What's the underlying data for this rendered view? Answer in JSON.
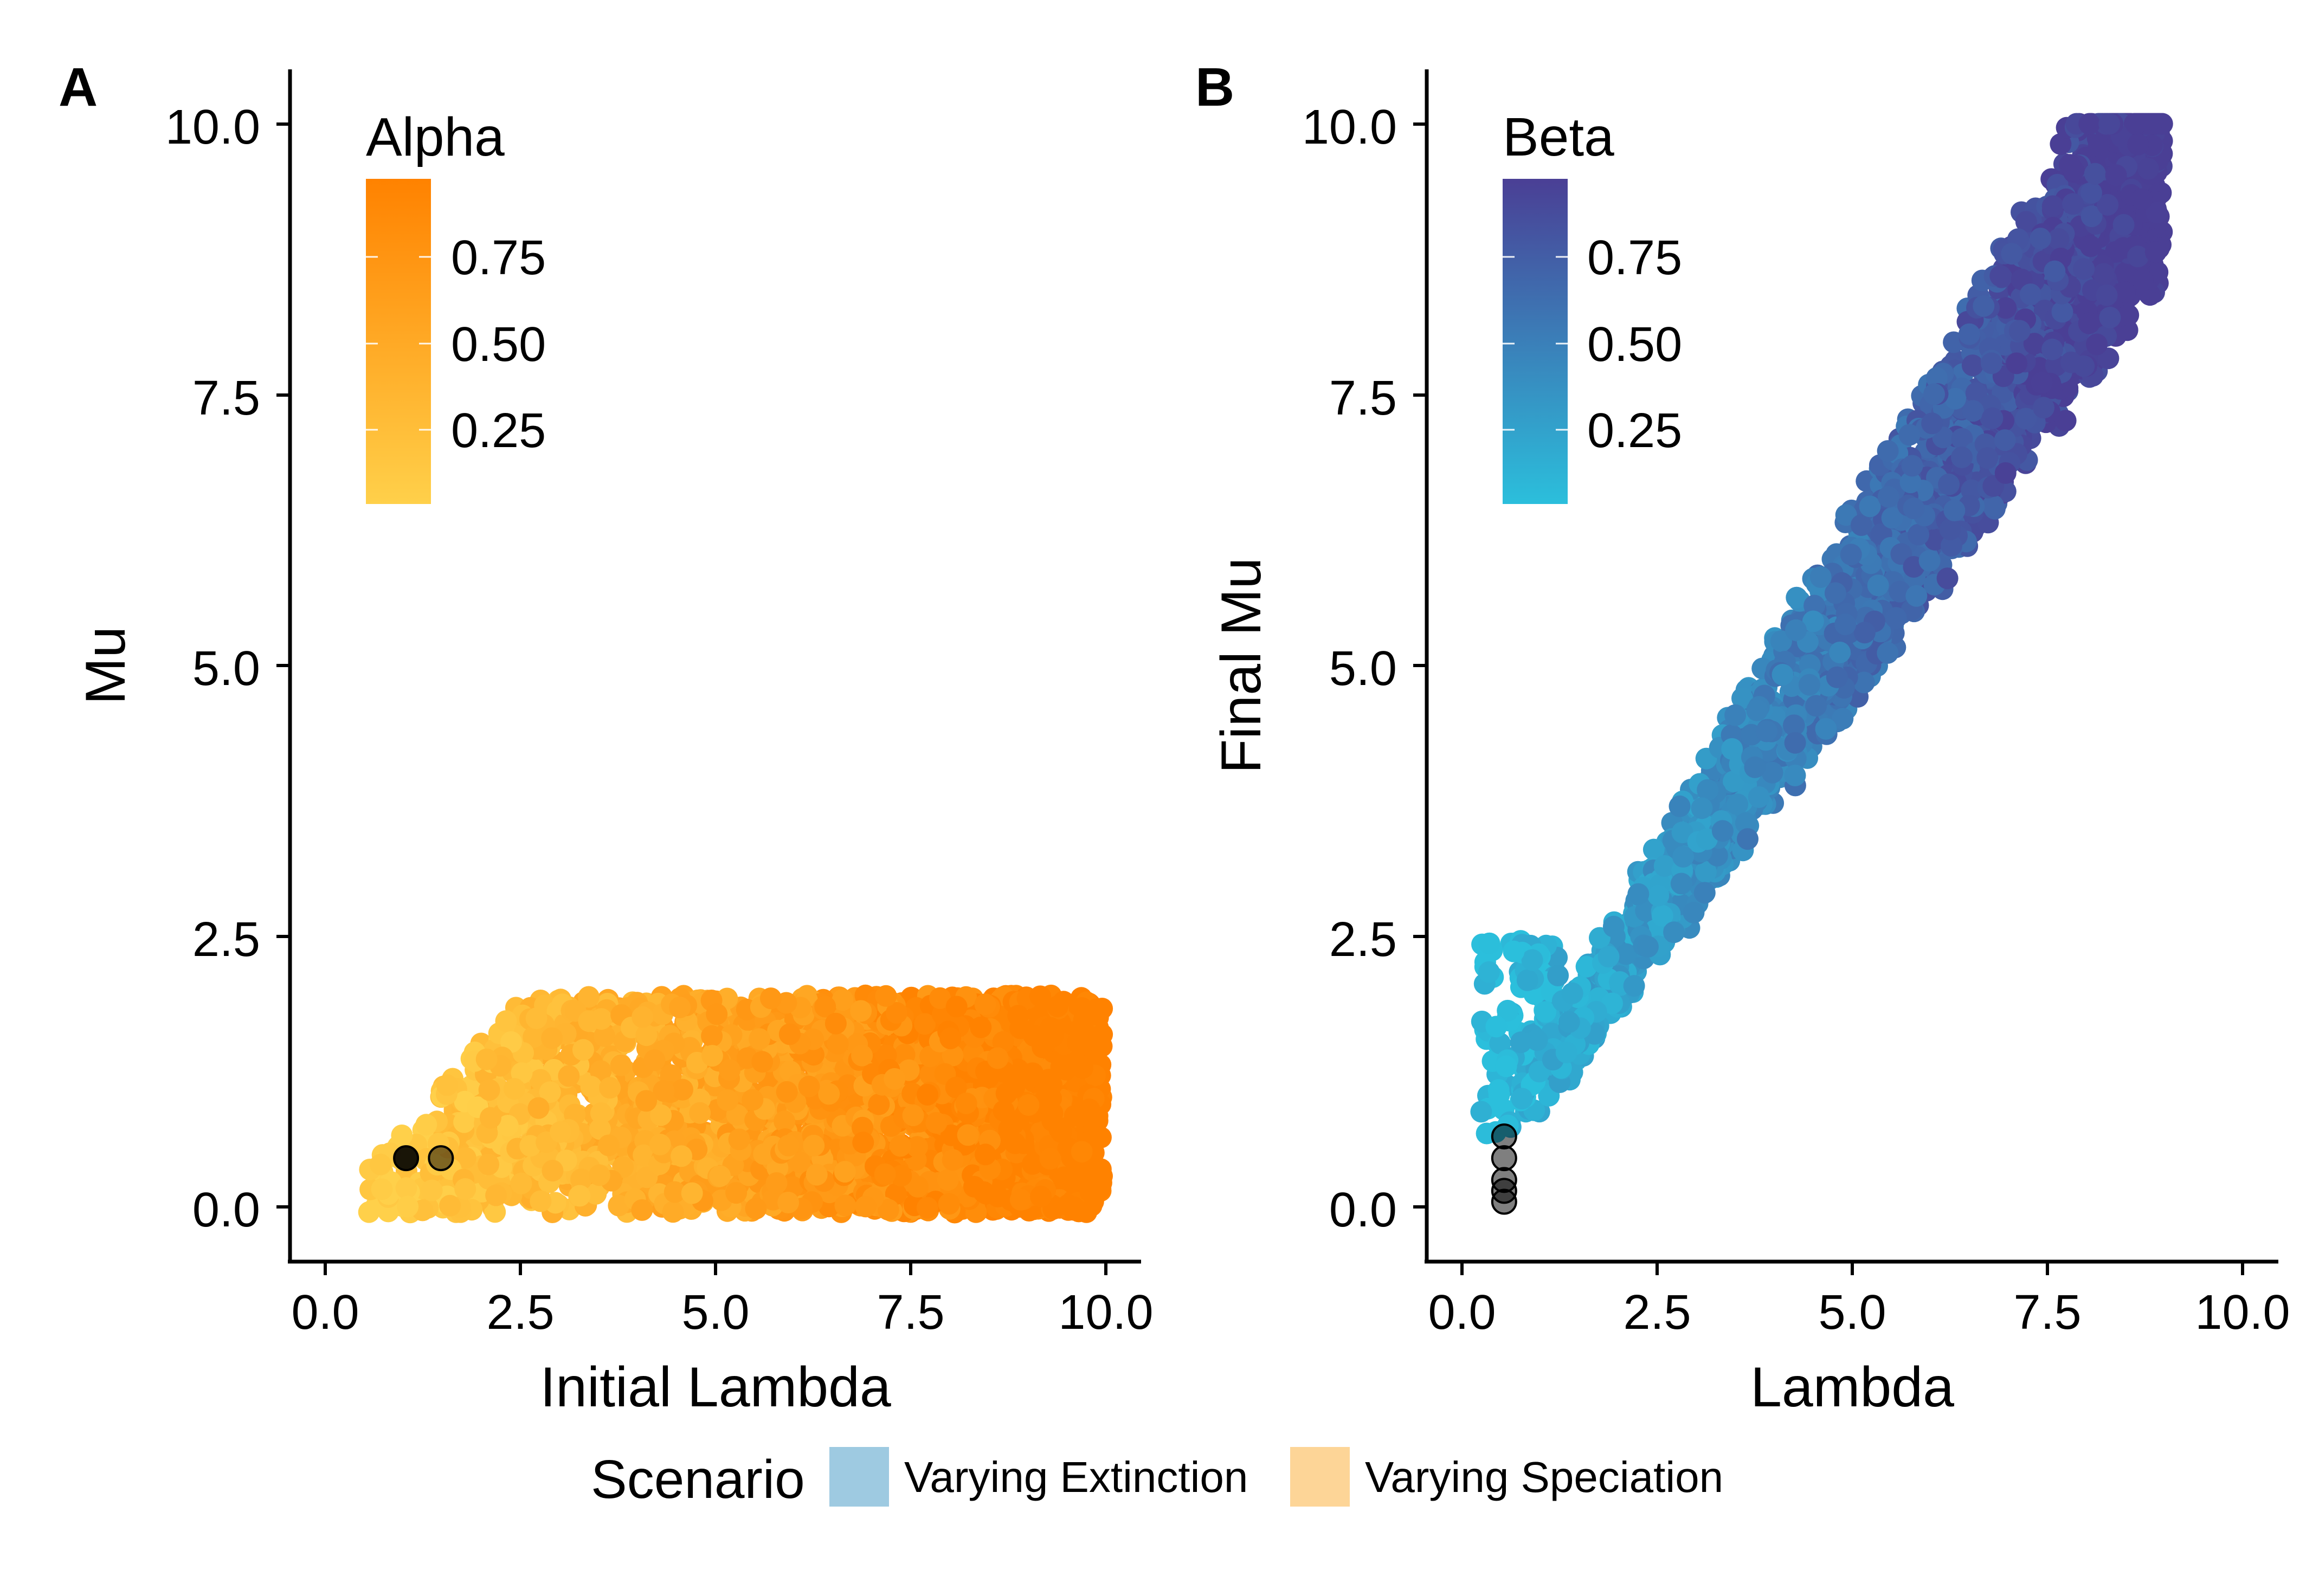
{
  "figure": {
    "scenario_legend": {
      "title": "Scenario",
      "items": [
        {
          "label": "Varying Extinction",
          "color": "#9ecae1"
        },
        {
          "label": "Varying Speciation",
          "color": "#fdd597"
        }
      ]
    }
  },
  "chart_data": [
    {
      "type": "scatter",
      "panel_letter": "A",
      "xlabel": "Initial Lambda",
      "ylabel": "Mu",
      "xlim": [
        -0.5,
        10.5
      ],
      "ylim": [
        -0.45,
        10.5
      ],
      "x_ticks": [
        "0.0",
        "2.5",
        "5.0",
        "7.5",
        "10.0"
      ],
      "y_ticks": [
        "0.0",
        "2.5",
        "5.0",
        "7.5",
        "10.0"
      ],
      "color_legend": {
        "title": "Alpha",
        "ticks": [
          "0.25",
          "0.50",
          "0.75"
        ],
        "low_color": "#ffd04a",
        "high_color": "#ff8200"
      },
      "point_cloud": {
        "description": "points with Mu between 0 and 2; Lambda from ~0.4 to 10; Mu never exceeds Lambda for low Lambda; color (Alpha) increases with Lambda",
        "x_range": [
          0.4,
          10.0
        ],
        "y_range": [
          0.0,
          2.0
        ]
      },
      "highlighted_points": [
        {
          "x": 1.0,
          "y": 0.5,
          "color": "#000000",
          "opacity": 0.9
        },
        {
          "x": 1.45,
          "y": 0.5,
          "color": "#000000",
          "opacity": 0.5
        }
      ],
      "grid": false
    },
    {
      "type": "scatter",
      "panel_letter": "B",
      "xlabel": "Lambda",
      "ylabel": "Final Mu",
      "xlim": [
        -0.5,
        10.5
      ],
      "ylim": [
        -0.45,
        10.5
      ],
      "x_ticks": [
        "0.0",
        "2.5",
        "5.0",
        "7.5",
        "10.0"
      ],
      "y_ticks": [
        "0.0",
        "2.5",
        "5.0",
        "7.5",
        "10.0"
      ],
      "color_legend": {
        "title": "Beta",
        "ticks": [
          "0.25",
          "0.50",
          "0.75"
        ],
        "low_color": "#2bbfdc",
        "high_color": "#4a3f95"
      },
      "point_cloud": {
        "description": "points in a diagonal band from about (0.2,1.7) to (9.0,10.0); Final Mu roughly 0.95-1.2 times Lambda; color (Beta) increases along the band",
        "x_range": [
          0.2,
          9.0
        ],
        "y_range": [
          0.7,
          10.0
        ]
      },
      "highlighted_points": [
        {
          "x": 0.5,
          "y": 0.7,
          "color": "#000000",
          "opacity": 0.5
        },
        {
          "x": 0.5,
          "y": 0.5,
          "color": "#000000",
          "opacity": 0.5
        },
        {
          "x": 0.5,
          "y": 0.3,
          "color": "#000000",
          "opacity": 0.5
        },
        {
          "x": 0.5,
          "y": 0.2,
          "color": "#000000",
          "opacity": 0.5
        },
        {
          "x": 0.5,
          "y": 0.1,
          "color": "#000000",
          "opacity": 0.5
        }
      ],
      "grid": false
    }
  ]
}
